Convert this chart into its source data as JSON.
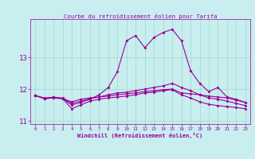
{
  "title": "Courbe du refroidissement éolien pour Tarifa",
  "xlabel": "Windchill (Refroidissement éolien,°C)",
  "background_color": "#c8eef0",
  "grid_color": "#a0d8c8",
  "line_color": "#990099",
  "hours": [
    0,
    1,
    2,
    3,
    4,
    5,
    6,
    7,
    8,
    9,
    10,
    11,
    12,
    13,
    14,
    15,
    16,
    17,
    18,
    19,
    20,
    21,
    22,
    23
  ],
  "line1": [
    11.8,
    11.7,
    11.75,
    11.7,
    11.6,
    11.68,
    11.72,
    11.75,
    11.78,
    11.82,
    11.85,
    11.88,
    11.92,
    11.95,
    11.98,
    12.0,
    11.88,
    11.85,
    11.82,
    11.78,
    11.75,
    11.72,
    11.65,
    11.58
  ],
  "line2": [
    11.8,
    11.7,
    11.72,
    11.7,
    11.38,
    11.5,
    11.62,
    11.68,
    11.72,
    11.75,
    11.78,
    11.82,
    11.88,
    11.9,
    11.95,
    11.98,
    11.82,
    11.72,
    11.6,
    11.52,
    11.48,
    11.45,
    11.42,
    11.38
  ],
  "line3": [
    11.8,
    11.7,
    11.72,
    11.7,
    11.5,
    11.58,
    11.68,
    11.82,
    12.05,
    12.55,
    13.52,
    13.68,
    13.3,
    13.62,
    13.78,
    13.88,
    13.52,
    12.58,
    12.18,
    11.92,
    12.05,
    11.75,
    11.68,
    11.58
  ],
  "line4": [
    11.8,
    11.72,
    11.74,
    11.72,
    11.55,
    11.62,
    11.7,
    11.75,
    11.82,
    11.88,
    11.9,
    11.95,
    12.0,
    12.05,
    12.1,
    12.18,
    12.05,
    11.95,
    11.82,
    11.72,
    11.68,
    11.62,
    11.55,
    11.48
  ],
  "ylim": [
    10.9,
    14.2
  ],
  "yticks": [
    11,
    12,
    13
  ],
  "xlim": [
    -0.5,
    23.5
  ],
  "xtick_labels": [
    "0",
    "1",
    "2",
    "3",
    "4",
    "5",
    "6",
    "7",
    "8",
    "9",
    "10",
    "11",
    "12",
    "13",
    "14",
    "15",
    "16",
    "17",
    "18",
    "19",
    "20",
    "21",
    "22",
    "23"
  ]
}
